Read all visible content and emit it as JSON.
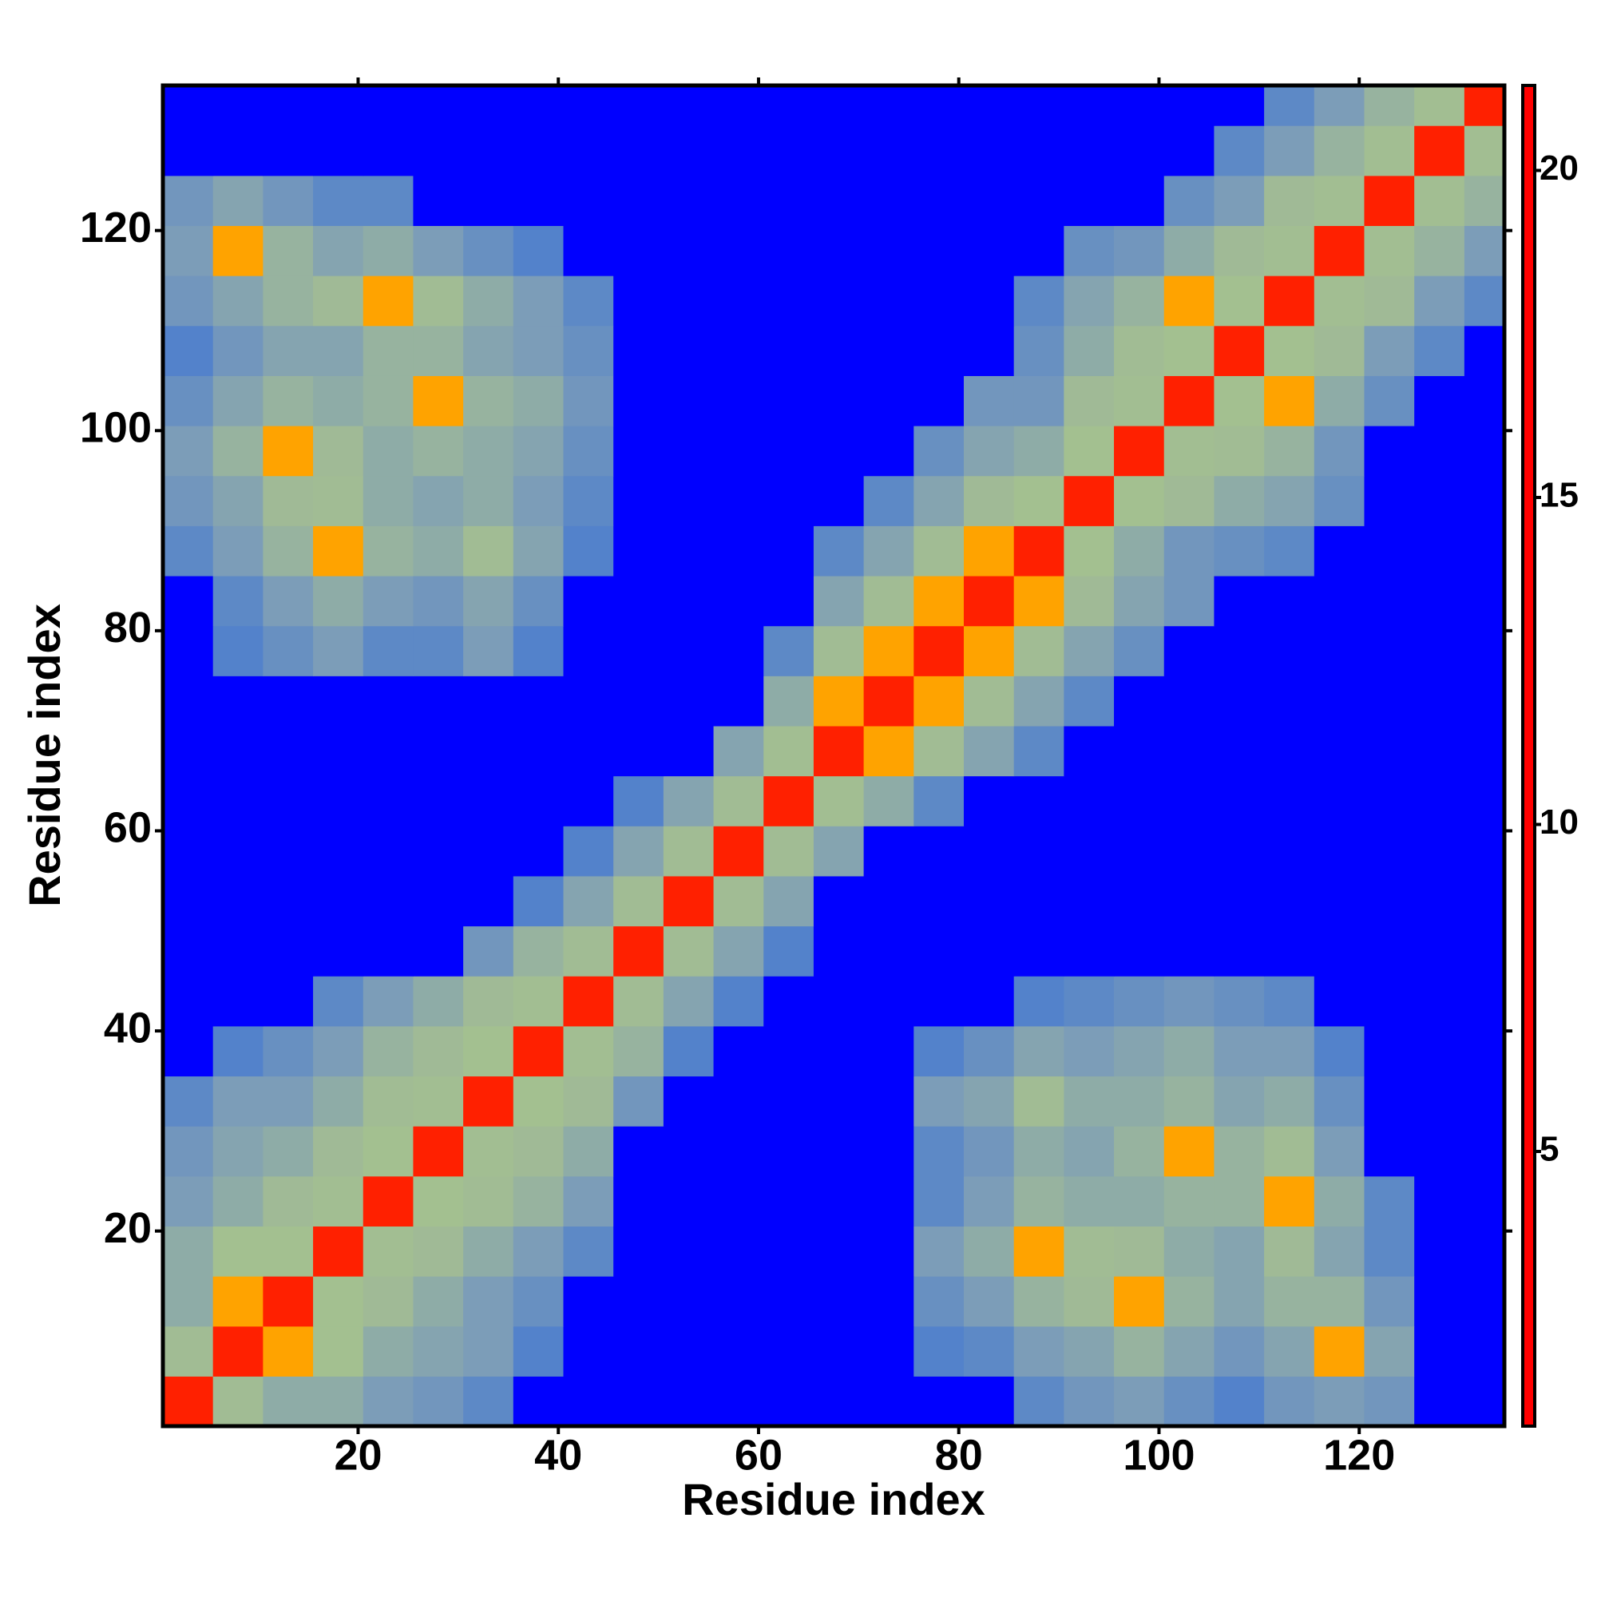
{
  "chart_data": {
    "type": "heatmap",
    "xlabel": "Residue index",
    "ylabel": "Residue index",
    "xlim": [
      0.5,
      134.5
    ],
    "ylim": [
      0.5,
      134.5
    ],
    "xticks": [
      20,
      40,
      60,
      80,
      100,
      120
    ],
    "yticks": [
      20,
      40,
      60,
      80,
      100,
      120
    ],
    "xbins": [
      0.5,
      5.5,
      10.5,
      15.5,
      20.5,
      25.5,
      30.5,
      35.5,
      40.5,
      45.5,
      50.5,
      55.5,
      60.5,
      65.5,
      70.5,
      75.5,
      80.5,
      85.5,
      90.5,
      95.5,
      100.5,
      105.5,
      110.5,
      115.5,
      120.5,
      125.5,
      130.5,
      134.5
    ],
    "ybins": [
      0.5,
      5.5,
      10.5,
      15.5,
      20.5,
      25.5,
      30.5,
      35.5,
      40.5,
      45.5,
      50.5,
      55.5,
      60.5,
      65.5,
      70.5,
      75.5,
      80.5,
      85.5,
      90.5,
      95.5,
      100.5,
      105.5,
      110.5,
      115.5,
      120.5,
      125.5,
      130.5,
      134.5
    ],
    "z": [
      [
        4,
        11,
        14,
        14,
        16,
        17,
        19,
        21,
        21,
        21,
        21,
        21,
        21,
        21,
        21,
        21,
        21,
        19,
        17,
        16,
        18,
        20,
        17,
        16,
        17,
        21,
        21
      ],
      [
        11,
        4,
        8,
        9,
        14,
        15,
        16,
        20,
        21,
        21,
        21,
        21,
        21,
        21,
        21,
        20,
        19,
        16,
        15,
        13,
        15,
        17,
        15,
        8,
        15,
        21,
        21
      ],
      [
        14,
        8,
        4,
        9,
        12,
        14,
        16,
        18,
        21,
        21,
        21,
        21,
        21,
        21,
        21,
        18,
        16,
        13,
        12,
        8,
        13,
        15,
        13,
        13,
        17,
        21,
        21
      ],
      [
        14,
        9,
        9,
        4,
        10,
        12,
        14,
        16,
        19,
        21,
        21,
        21,
        21,
        21,
        21,
        16,
        14,
        8,
        11,
        12,
        14,
        15,
        12,
        15,
        19,
        21,
        21
      ],
      [
        16,
        14,
        12,
        10,
        4,
        9,
        11,
        13,
        16,
        21,
        21,
        21,
        21,
        21,
        21,
        19,
        16,
        13,
        14,
        14,
        13,
        13,
        8,
        14,
        19,
        21,
        21
      ],
      [
        17,
        15,
        14,
        12,
        9,
        4,
        10,
        12,
        14,
        21,
        21,
        21,
        21,
        21,
        21,
        19,
        17,
        14,
        15,
        13,
        8,
        13,
        11,
        16,
        21,
        21,
        21
      ],
      [
        19,
        16,
        16,
        14,
        11,
        10,
        4,
        9,
        12,
        17,
        21,
        21,
        21,
        21,
        21,
        16,
        15,
        11,
        14,
        14,
        13,
        15,
        14,
        18,
        21,
        21,
        21
      ],
      [
        21,
        20,
        18,
        16,
        13,
        12,
        9,
        4,
        10,
        13,
        20,
        21,
        21,
        21,
        21,
        20,
        18,
        15,
        16,
        15,
        14,
        16,
        16,
        20,
        21,
        21,
        21
      ],
      [
        21,
        21,
        21,
        19,
        16,
        14,
        12,
        10,
        4,
        11,
        15,
        20,
        21,
        21,
        21,
        21,
        21,
        20,
        19,
        18,
        17,
        18,
        19,
        21,
        21,
        21,
        21
      ],
      [
        21,
        21,
        21,
        21,
        21,
        21,
        17,
        13,
        11,
        4,
        11,
        15,
        20,
        21,
        21,
        21,
        21,
        21,
        21,
        21,
        21,
        21,
        21,
        21,
        21,
        21,
        21
      ],
      [
        21,
        21,
        21,
        21,
        21,
        21,
        21,
        20,
        15,
        11,
        4,
        11,
        15,
        21,
        21,
        21,
        21,
        21,
        21,
        21,
        21,
        21,
        21,
        21,
        21,
        21,
        21
      ],
      [
        21,
        21,
        21,
        21,
        21,
        21,
        21,
        21,
        20,
        15,
        11,
        4,
        11,
        15,
        21,
        21,
        21,
        21,
        21,
        21,
        21,
        21,
        21,
        21,
        21,
        21,
        21
      ],
      [
        21,
        21,
        21,
        21,
        21,
        21,
        21,
        21,
        21,
        20,
        15,
        11,
        4,
        10,
        14,
        19,
        21,
        21,
        21,
        21,
        21,
        21,
        21,
        21,
        21,
        21,
        21
      ],
      [
        21,
        21,
        21,
        21,
        21,
        21,
        21,
        21,
        21,
        21,
        21,
        15,
        10,
        4,
        8,
        11,
        15,
        19,
        21,
        21,
        21,
        21,
        21,
        21,
        21,
        21,
        21
      ],
      [
        21,
        21,
        21,
        21,
        21,
        21,
        21,
        21,
        21,
        21,
        21,
        21,
        14,
        8,
        4,
        8,
        11,
        15,
        19,
        21,
        21,
        21,
        21,
        21,
        21,
        21,
        21
      ],
      [
        21,
        20,
        18,
        16,
        19,
        19,
        16,
        20,
        21,
        21,
        21,
        21,
        19,
        11,
        8,
        4,
        8,
        11,
        15,
        18,
        21,
        21,
        21,
        21,
        21,
        21,
        21
      ],
      [
        21,
        19,
        16,
        14,
        16,
        17,
        15,
        18,
        21,
        21,
        21,
        21,
        21,
        15,
        11,
        8,
        4,
        8,
        12,
        15,
        17,
        21,
        21,
        21,
        21,
        21,
        21
      ],
      [
        19,
        16,
        13,
        8,
        13,
        14,
        11,
        15,
        20,
        21,
        21,
        21,
        21,
        19,
        15,
        11,
        8,
        4,
        9,
        14,
        17,
        18,
        19,
        21,
        21,
        21,
        21
      ],
      [
        17,
        15,
        12,
        11,
        14,
        15,
        14,
        16,
        19,
        21,
        21,
        21,
        21,
        21,
        19,
        15,
        12,
        9,
        4,
        9,
        12,
        14,
        15,
        18,
        21,
        21,
        21
      ],
      [
        16,
        13,
        8,
        12,
        14,
        13,
        14,
        15,
        18,
        21,
        21,
        21,
        21,
        21,
        21,
        18,
        15,
        14,
        9,
        4,
        10,
        11,
        13,
        17,
        21,
        21,
        21
      ],
      [
        18,
        15,
        13,
        14,
        13,
        8,
        13,
        14,
        17,
        21,
        21,
        21,
        21,
        21,
        21,
        21,
        17,
        17,
        12,
        10,
        4,
        9,
        8,
        14,
        18,
        21,
        21
      ],
      [
        20,
        17,
        15,
        15,
        13,
        13,
        15,
        16,
        18,
        21,
        21,
        21,
        21,
        21,
        21,
        21,
        21,
        18,
        14,
        11,
        9,
        4,
        9,
        12,
        16,
        19,
        21
      ],
      [
        17,
        15,
        13,
        12,
        8,
        11,
        14,
        16,
        19,
        21,
        21,
        21,
        21,
        21,
        21,
        21,
        21,
        19,
        15,
        13,
        8,
        9,
        4,
        10,
        12,
        16,
        19
      ],
      [
        16,
        8,
        13,
        15,
        14,
        16,
        18,
        20,
        21,
        21,
        21,
        21,
        21,
        21,
        21,
        21,
        21,
        21,
        18,
        17,
        14,
        12,
        10,
        4,
        10,
        13,
        16
      ],
      [
        17,
        15,
        17,
        19,
        19,
        21,
        21,
        21,
        21,
        21,
        21,
        21,
        21,
        21,
        21,
        21,
        21,
        21,
        21,
        21,
        18,
        16,
        12,
        10,
        4,
        10,
        13
      ],
      [
        21,
        21,
        21,
        21,
        21,
        21,
        21,
        21,
        21,
        21,
        21,
        21,
        21,
        21,
        21,
        21,
        21,
        21,
        21,
        21,
        21,
        19,
        16,
        13,
        10,
        4,
        10
      ],
      [
        21,
        21,
        21,
        21,
        21,
        21,
        21,
        21,
        21,
        21,
        21,
        21,
        21,
        21,
        21,
        21,
        21,
        21,
        21,
        21,
        21,
        21,
        19,
        16,
        13,
        10,
        4
      ]
    ],
    "colorbar": {
      "clim": [
        0.8,
        21.3
      ],
      "ticks": [
        5,
        10,
        15,
        20
      ],
      "colorscale": [
        [
          0.8,
          "#ff0000"
        ],
        [
          5,
          "#ff2a00"
        ],
        [
          5.2,
          "#ff8c00"
        ],
        [
          8.3,
          "#ffa500"
        ],
        [
          8.5,
          "#a3c18f"
        ],
        [
          12,
          "#a0ba96"
        ],
        [
          16,
          "#7c9db8"
        ],
        [
          20.3,
          "#5080cc"
        ],
        [
          20.5,
          "#0000ff"
        ],
        [
          21.3,
          "#0000ff"
        ]
      ]
    }
  }
}
